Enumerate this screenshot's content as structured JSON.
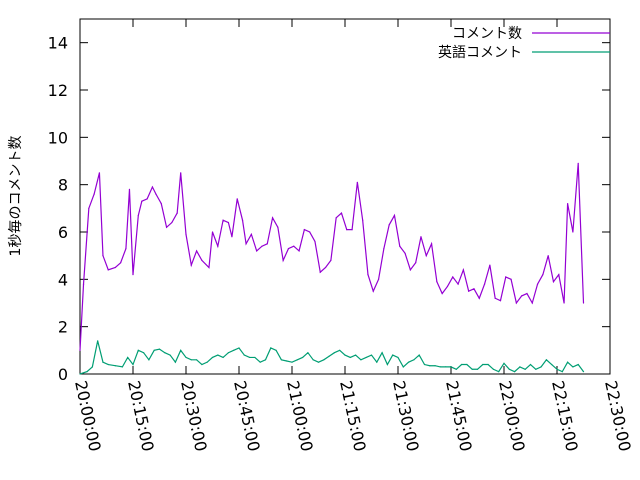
{
  "chart_data": {
    "type": "line",
    "title": "",
    "xlabel": "",
    "ylabel": "1秒毎のコメント数",
    "xlim": [
      "20:00:00",
      "22:30:00"
    ],
    "ylim": [
      0,
      15
    ],
    "yticks": [
      0,
      2,
      4,
      6,
      8,
      10,
      12,
      14
    ],
    "xticks": [
      "20:00:00",
      "20:15:00",
      "20:30:00",
      "20:45:00",
      "21:00:00",
      "21:15:00",
      "21:30:00",
      "21:45:00",
      "22:00:00",
      "22:15:00",
      "22:30:00"
    ],
    "grid": false,
    "legend_position": "top-right",
    "series": [
      {
        "name": "コメント数",
        "color": "#9400d3",
        "points": [
          [
            "20:00:00",
            1.0
          ],
          [
            "20:01:00",
            3.8
          ],
          [
            "20:02:30",
            7.0
          ],
          [
            "20:04:00",
            7.6
          ],
          [
            "20:05:30",
            8.5
          ],
          [
            "20:06:30",
            5.0
          ],
          [
            "20:08:00",
            4.4
          ],
          [
            "20:10:00",
            4.5
          ],
          [
            "20:11:30",
            4.7
          ],
          [
            "20:13:00",
            5.3
          ],
          [
            "20:14:00",
            7.8
          ],
          [
            "20:15:00",
            4.2
          ],
          [
            "20:16:30",
            6.7
          ],
          [
            "20:17:30",
            7.3
          ],
          [
            "20:19:00",
            7.4
          ],
          [
            "20:20:30",
            7.9
          ],
          [
            "20:21:30",
            7.6
          ],
          [
            "20:23:00",
            7.2
          ],
          [
            "20:24:30",
            6.2
          ],
          [
            "20:26:00",
            6.4
          ],
          [
            "20:27:30",
            6.8
          ],
          [
            "20:28:30",
            8.5
          ],
          [
            "20:30:00",
            5.9
          ],
          [
            "20:31:30",
            4.6
          ],
          [
            "20:33:00",
            5.2
          ],
          [
            "20:34:30",
            4.8
          ],
          [
            "20:36:30",
            4.5
          ],
          [
            "20:37:30",
            6.0
          ],
          [
            "20:39:00",
            5.4
          ],
          [
            "20:40:30",
            6.5
          ],
          [
            "20:42:00",
            6.4
          ],
          [
            "20:43:00",
            5.8
          ],
          [
            "20:44:30",
            7.4
          ],
          [
            "20:46:00",
            6.5
          ],
          [
            "20:47:00",
            5.5
          ],
          [
            "20:48:30",
            5.9
          ],
          [
            "20:50:00",
            5.2
          ],
          [
            "20:51:30",
            5.4
          ],
          [
            "20:53:00",
            5.5
          ],
          [
            "20:54:30",
            6.6
          ],
          [
            "20:56:00",
            6.2
          ],
          [
            "20:57:30",
            4.8
          ],
          [
            "20:59:00",
            5.3
          ],
          [
            "21:00:30",
            5.4
          ],
          [
            "21:02:00",
            5.2
          ],
          [
            "21:03:30",
            6.1
          ],
          [
            "21:05:00",
            6.0
          ],
          [
            "21:06:30",
            5.6
          ],
          [
            "21:08:00",
            4.3
          ],
          [
            "21:09:30",
            4.5
          ],
          [
            "21:11:00",
            4.8
          ],
          [
            "21:12:30",
            6.6
          ],
          [
            "21:14:00",
            6.8
          ],
          [
            "21:15:30",
            6.1
          ],
          [
            "21:17:00",
            6.1
          ],
          [
            "21:18:30",
            8.1
          ],
          [
            "21:20:00",
            6.5
          ],
          [
            "21:21:30",
            4.2
          ],
          [
            "21:23:00",
            3.5
          ],
          [
            "21:24:30",
            4.0
          ],
          [
            "21:26:00",
            5.3
          ],
          [
            "21:27:30",
            6.3
          ],
          [
            "21:29:00",
            6.7
          ],
          [
            "21:30:30",
            5.4
          ],
          [
            "21:32:00",
            5.1
          ],
          [
            "21:33:30",
            4.4
          ],
          [
            "21:35:00",
            4.7
          ],
          [
            "21:36:30",
            5.8
          ],
          [
            "21:38:00",
            5.0
          ],
          [
            "21:39:30",
            5.5
          ],
          [
            "21:41:00",
            3.9
          ],
          [
            "21:42:30",
            3.4
          ],
          [
            "21:44:00",
            3.7
          ],
          [
            "21:45:30",
            4.1
          ],
          [
            "21:47:00",
            3.8
          ],
          [
            "21:48:30",
            4.4
          ],
          [
            "21:50:00",
            3.5
          ],
          [
            "21:51:30",
            3.6
          ],
          [
            "21:53:00",
            3.2
          ],
          [
            "21:54:30",
            3.8
          ],
          [
            "21:56:00",
            4.6
          ],
          [
            "21:57:30",
            3.2
          ],
          [
            "21:59:00",
            3.1
          ],
          [
            "22:00:30",
            4.1
          ],
          [
            "22:02:00",
            4.0
          ],
          [
            "22:03:30",
            3.0
          ],
          [
            "22:05:00",
            3.3
          ],
          [
            "22:06:30",
            3.4
          ],
          [
            "22:08:00",
            3.0
          ],
          [
            "22:09:30",
            3.8
          ],
          [
            "22:11:00",
            4.2
          ],
          [
            "22:12:30",
            5.0
          ],
          [
            "22:14:00",
            3.9
          ],
          [
            "22:15:30",
            4.2
          ],
          [
            "22:17:00",
            3.0
          ],
          [
            "22:18:00",
            7.2
          ],
          [
            "22:19:30",
            6.0
          ],
          [
            "22:21:00",
            8.9
          ],
          [
            "22:22:30",
            3.0
          ]
        ]
      },
      {
        "name": "英語コメント",
        "color": "#009e73",
        "points": [
          [
            "20:00:00",
            0.0
          ],
          [
            "20:02:00",
            0.1
          ],
          [
            "20:03:30",
            0.3
          ],
          [
            "20:05:00",
            1.4
          ],
          [
            "20:06:30",
            0.5
          ],
          [
            "20:08:00",
            0.4
          ],
          [
            "20:10:00",
            0.35
          ],
          [
            "20:12:00",
            0.3
          ],
          [
            "20:13:30",
            0.7
          ],
          [
            "20:15:00",
            0.4
          ],
          [
            "20:16:30",
            1.0
          ],
          [
            "20:18:00",
            0.9
          ],
          [
            "20:19:30",
            0.6
          ],
          [
            "20:21:00",
            1.0
          ],
          [
            "20:22:30",
            1.05
          ],
          [
            "20:24:00",
            0.9
          ],
          [
            "20:25:30",
            0.8
          ],
          [
            "20:27:00",
            0.5
          ],
          [
            "20:28:30",
            1.0
          ],
          [
            "20:30:00",
            0.7
          ],
          [
            "20:31:30",
            0.6
          ],
          [
            "20:33:00",
            0.6
          ],
          [
            "20:34:30",
            0.4
          ],
          [
            "20:36:00",
            0.5
          ],
          [
            "20:37:30",
            0.7
          ],
          [
            "20:39:00",
            0.8
          ],
          [
            "20:40:30",
            0.7
          ],
          [
            "20:42:00",
            0.9
          ],
          [
            "20:43:30",
            1.0
          ],
          [
            "20:45:00",
            1.1
          ],
          [
            "20:46:30",
            0.8
          ],
          [
            "20:48:00",
            0.7
          ],
          [
            "20:49:30",
            0.7
          ],
          [
            "20:51:00",
            0.5
          ],
          [
            "20:52:30",
            0.6
          ],
          [
            "20:54:00",
            1.1
          ],
          [
            "20:55:30",
            1.0
          ],
          [
            "20:57:00",
            0.6
          ],
          [
            "20:58:30",
            0.55
          ],
          [
            "21:00:00",
            0.5
          ],
          [
            "21:01:30",
            0.6
          ],
          [
            "21:03:00",
            0.7
          ],
          [
            "21:04:30",
            0.9
          ],
          [
            "21:06:00",
            0.6
          ],
          [
            "21:07:30",
            0.5
          ],
          [
            "21:09:00",
            0.6
          ],
          [
            "21:10:30",
            0.75
          ],
          [
            "21:12:00",
            0.9
          ],
          [
            "21:13:30",
            1.0
          ],
          [
            "21:15:00",
            0.8
          ],
          [
            "21:16:30",
            0.7
          ],
          [
            "21:18:00",
            0.8
          ],
          [
            "21:19:30",
            0.6
          ],
          [
            "21:21:00",
            0.7
          ],
          [
            "21:22:30",
            0.8
          ],
          [
            "21:24:00",
            0.5
          ],
          [
            "21:25:30",
            0.9
          ],
          [
            "21:27:00",
            0.4
          ],
          [
            "21:28:30",
            0.8
          ],
          [
            "21:30:00",
            0.7
          ],
          [
            "21:31:30",
            0.3
          ],
          [
            "21:33:00",
            0.5
          ],
          [
            "21:34:30",
            0.6
          ],
          [
            "21:36:00",
            0.8
          ],
          [
            "21:37:30",
            0.4
          ],
          [
            "21:39:00",
            0.35
          ],
          [
            "21:40:30",
            0.35
          ],
          [
            "21:42:00",
            0.3
          ],
          [
            "21:43:30",
            0.3
          ],
          [
            "21:45:00",
            0.3
          ],
          [
            "21:46:30",
            0.2
          ],
          [
            "21:48:00",
            0.4
          ],
          [
            "21:49:30",
            0.4
          ],
          [
            "21:51:00",
            0.2
          ],
          [
            "21:52:30",
            0.2
          ],
          [
            "21:54:00",
            0.4
          ],
          [
            "21:55:30",
            0.4
          ],
          [
            "21:57:00",
            0.2
          ],
          [
            "21:58:30",
            0.1
          ],
          [
            "22:00:00",
            0.45
          ],
          [
            "22:01:30",
            0.2
          ],
          [
            "22:03:00",
            0.1
          ],
          [
            "22:04:30",
            0.3
          ],
          [
            "22:06:00",
            0.2
          ],
          [
            "22:07:30",
            0.4
          ],
          [
            "22:09:00",
            0.2
          ],
          [
            "22:10:30",
            0.3
          ],
          [
            "22:12:00",
            0.6
          ],
          [
            "22:13:30",
            0.4
          ],
          [
            "22:15:00",
            0.2
          ],
          [
            "22:16:30",
            0.1
          ],
          [
            "22:18:00",
            0.5
          ],
          [
            "22:19:30",
            0.3
          ],
          [
            "22:21:00",
            0.4
          ],
          [
            "22:22:30",
            0.1
          ]
        ]
      }
    ]
  }
}
